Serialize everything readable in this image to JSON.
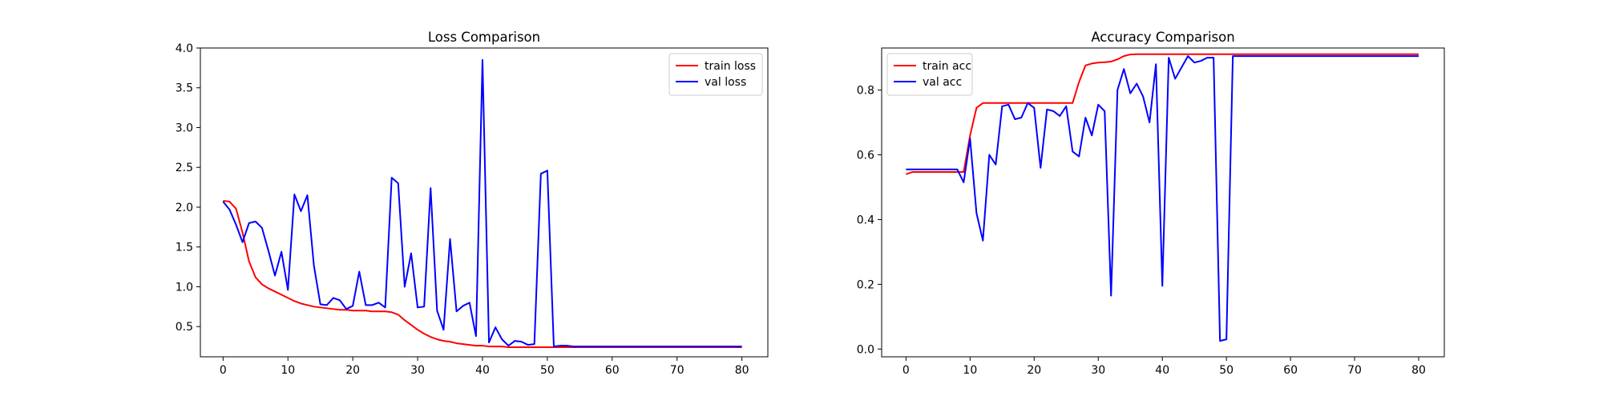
{
  "chart_data": [
    {
      "type": "line",
      "title": "Loss Comparison",
      "xlabel": "",
      "ylabel": "",
      "xlim": [
        -3.5,
        84
      ],
      "ylim": [
        0.12,
        4.0
      ],
      "xticks": [
        0,
        10,
        20,
        30,
        40,
        50,
        60,
        70,
        80
      ],
      "yticks": [
        0.5,
        1.0,
        1.5,
        2.0,
        2.5,
        3.0,
        3.5,
        4.0
      ],
      "ytick_labels": [
        "0.5",
        "1.0",
        "1.5",
        "2.0",
        "2.5",
        "3.0",
        "3.5",
        "4.0"
      ],
      "legend": "top-right",
      "grid": false,
      "series": [
        {
          "name": "train loss",
          "color": "#ff0000",
          "x": [
            0,
            1,
            2,
            3,
            4,
            5,
            6,
            7,
            8,
            9,
            10,
            11,
            12,
            13,
            14,
            15,
            16,
            17,
            18,
            19,
            20,
            21,
            22,
            23,
            24,
            25,
            26,
            27,
            28,
            29,
            30,
            31,
            32,
            33,
            34,
            35,
            36,
            37,
            38,
            39,
            40,
            41,
            42,
            43,
            44,
            45,
            46,
            47,
            48,
            49,
            50,
            51,
            52,
            53,
            54,
            55,
            56,
            57,
            58,
            59,
            60,
            61,
            62,
            63,
            64,
            65,
            66,
            67,
            68,
            69,
            70,
            71,
            72,
            73,
            74,
            75,
            76,
            77,
            78,
            79,
            80
          ],
          "values": [
            2.08,
            2.07,
            1.98,
            1.68,
            1.32,
            1.12,
            1.03,
            0.98,
            0.94,
            0.9,
            0.86,
            0.82,
            0.79,
            0.77,
            0.75,
            0.74,
            0.73,
            0.72,
            0.71,
            0.71,
            0.7,
            0.7,
            0.7,
            0.69,
            0.69,
            0.69,
            0.68,
            0.65,
            0.58,
            0.52,
            0.46,
            0.41,
            0.37,
            0.34,
            0.32,
            0.31,
            0.29,
            0.28,
            0.27,
            0.26,
            0.26,
            0.25,
            0.25,
            0.25,
            0.24,
            0.24,
            0.24,
            0.24,
            0.24,
            0.24,
            0.24,
            0.24,
            0.24,
            0.24,
            0.24,
            0.24,
            0.24,
            0.24,
            0.24,
            0.24,
            0.24,
            0.24,
            0.24,
            0.24,
            0.24,
            0.24,
            0.24,
            0.24,
            0.24,
            0.24,
            0.24,
            0.24,
            0.24,
            0.24,
            0.24,
            0.24,
            0.24,
            0.24,
            0.24,
            0.24,
            0.24
          ]
        },
        {
          "name": "val loss",
          "color": "#0000ff",
          "x": [
            0,
            1,
            2,
            3,
            4,
            5,
            6,
            7,
            8,
            9,
            10,
            11,
            12,
            13,
            14,
            15,
            16,
            17,
            18,
            19,
            20,
            21,
            22,
            23,
            24,
            25,
            26,
            27,
            28,
            29,
            30,
            31,
            32,
            33,
            34,
            35,
            36,
            37,
            38,
            39,
            40,
            41,
            42,
            43,
            44,
            45,
            46,
            47,
            48,
            49,
            50,
            51,
            52,
            53,
            54,
            55,
            56,
            57,
            58,
            59,
            60,
            61,
            62,
            63,
            64,
            65,
            66,
            67,
            68,
            69,
            70,
            71,
            72,
            73,
            74,
            75,
            76,
            77,
            78,
            79,
            80
          ],
          "values": [
            2.07,
            1.97,
            1.78,
            1.56,
            1.8,
            1.82,
            1.74,
            1.45,
            1.14,
            1.44,
            0.96,
            2.16,
            1.95,
            2.15,
            1.27,
            0.78,
            0.77,
            0.86,
            0.83,
            0.72,
            0.76,
            1.19,
            0.77,
            0.77,
            0.8,
            0.74,
            2.37,
            2.3,
            1.0,
            1.42,
            0.74,
            0.75,
            2.24,
            0.7,
            0.46,
            1.6,
            0.69,
            0.76,
            0.8,
            0.38,
            3.85,
            0.3,
            0.49,
            0.34,
            0.26,
            0.32,
            0.31,
            0.27,
            0.28,
            2.42,
            2.46,
            0.25,
            0.26,
            0.26,
            0.25,
            0.25,
            0.25,
            0.25,
            0.25,
            0.25,
            0.25,
            0.25,
            0.25,
            0.25,
            0.25,
            0.25,
            0.25,
            0.25,
            0.25,
            0.25,
            0.25,
            0.25,
            0.25,
            0.25,
            0.25,
            0.25,
            0.25,
            0.25,
            0.25,
            0.25,
            0.25
          ]
        }
      ]
    },
    {
      "type": "line",
      "title": "Accuracy Comparison",
      "xlabel": "",
      "ylabel": "",
      "xlim": [
        -3.8,
        84
      ],
      "ylim": [
        -0.024,
        0.93
      ],
      "xticks": [
        0,
        10,
        20,
        30,
        40,
        50,
        60,
        70,
        80
      ],
      "yticks": [
        0.0,
        0.2,
        0.4,
        0.6,
        0.8
      ],
      "ytick_labels": [
        "0.0",
        "0.2",
        "0.4",
        "0.6",
        "0.8"
      ],
      "legend": "top-left",
      "grid": false,
      "series": [
        {
          "name": "train acc",
          "color": "#ff0000",
          "x": [
            0,
            1,
            2,
            3,
            4,
            5,
            6,
            7,
            8,
            9,
            10,
            11,
            12,
            13,
            14,
            15,
            16,
            17,
            18,
            19,
            20,
            21,
            22,
            23,
            24,
            25,
            26,
            27,
            28,
            29,
            30,
            31,
            32,
            33,
            34,
            35,
            36,
            37,
            38,
            39,
            40,
            41,
            42,
            43,
            44,
            45,
            46,
            47,
            48,
            49,
            50,
            51,
            52,
            53,
            54,
            55,
            56,
            57,
            58,
            59,
            60,
            61,
            62,
            63,
            64,
            65,
            66,
            67,
            68,
            69,
            70,
            71,
            72,
            73,
            74,
            75,
            76,
            77,
            78,
            79,
            80
          ],
          "values": [
            0.54,
            0.547,
            0.547,
            0.547,
            0.547,
            0.547,
            0.547,
            0.547,
            0.547,
            0.547,
            0.66,
            0.745,
            0.76,
            0.76,
            0.76,
            0.76,
            0.76,
            0.76,
            0.76,
            0.76,
            0.76,
            0.76,
            0.76,
            0.76,
            0.76,
            0.76,
            0.76,
            0.825,
            0.876,
            0.882,
            0.885,
            0.886,
            0.888,
            0.895,
            0.905,
            0.91,
            0.911,
            0.911,
            0.911,
            0.911,
            0.911,
            0.911,
            0.911,
            0.911,
            0.911,
            0.911,
            0.911,
            0.911,
            0.911,
            0.911,
            0.911,
            0.911,
            0.911,
            0.911,
            0.911,
            0.911,
            0.911,
            0.911,
            0.911,
            0.911,
            0.911,
            0.911,
            0.911,
            0.911,
            0.911,
            0.911,
            0.911,
            0.911,
            0.911,
            0.911,
            0.911,
            0.911,
            0.911,
            0.911,
            0.911,
            0.911,
            0.911,
            0.911,
            0.911,
            0.911,
            0.911
          ]
        },
        {
          "name": "val acc",
          "color": "#0000ff",
          "x": [
            0,
            1,
            2,
            3,
            4,
            5,
            6,
            7,
            8,
            9,
            10,
            11,
            12,
            13,
            14,
            15,
            16,
            17,
            18,
            19,
            20,
            21,
            22,
            23,
            24,
            25,
            26,
            27,
            28,
            29,
            30,
            31,
            32,
            33,
            34,
            35,
            36,
            37,
            38,
            39,
            40,
            41,
            42,
            43,
            44,
            45,
            46,
            47,
            48,
            49,
            50,
            51,
            52,
            53,
            54,
            55,
            56,
            57,
            58,
            59,
            60,
            61,
            62,
            63,
            64,
            65,
            66,
            67,
            68,
            69,
            70,
            71,
            72,
            73,
            74,
            75,
            76,
            77,
            78,
            79,
            80
          ],
          "values": [
            0.555,
            0.555,
            0.555,
            0.555,
            0.555,
            0.555,
            0.555,
            0.555,
            0.555,
            0.515,
            0.65,
            0.42,
            0.335,
            0.6,
            0.57,
            0.75,
            0.755,
            0.71,
            0.715,
            0.76,
            0.745,
            0.56,
            0.74,
            0.735,
            0.72,
            0.75,
            0.61,
            0.595,
            0.715,
            0.66,
            0.755,
            0.735,
            0.165,
            0.8,
            0.865,
            0.79,
            0.82,
            0.78,
            0.7,
            0.88,
            0.195,
            0.9,
            0.835,
            0.87,
            0.905,
            0.885,
            0.89,
            0.9,
            0.9,
            0.025,
            0.03,
            0.905,
            0.905,
            0.905,
            0.905,
            0.905,
            0.905,
            0.905,
            0.905,
            0.905,
            0.905,
            0.905,
            0.905,
            0.905,
            0.905,
            0.905,
            0.905,
            0.905,
            0.905,
            0.905,
            0.905,
            0.905,
            0.905,
            0.905,
            0.905,
            0.905,
            0.905,
            0.905,
            0.905,
            0.905,
            0.905
          ]
        }
      ]
    }
  ]
}
